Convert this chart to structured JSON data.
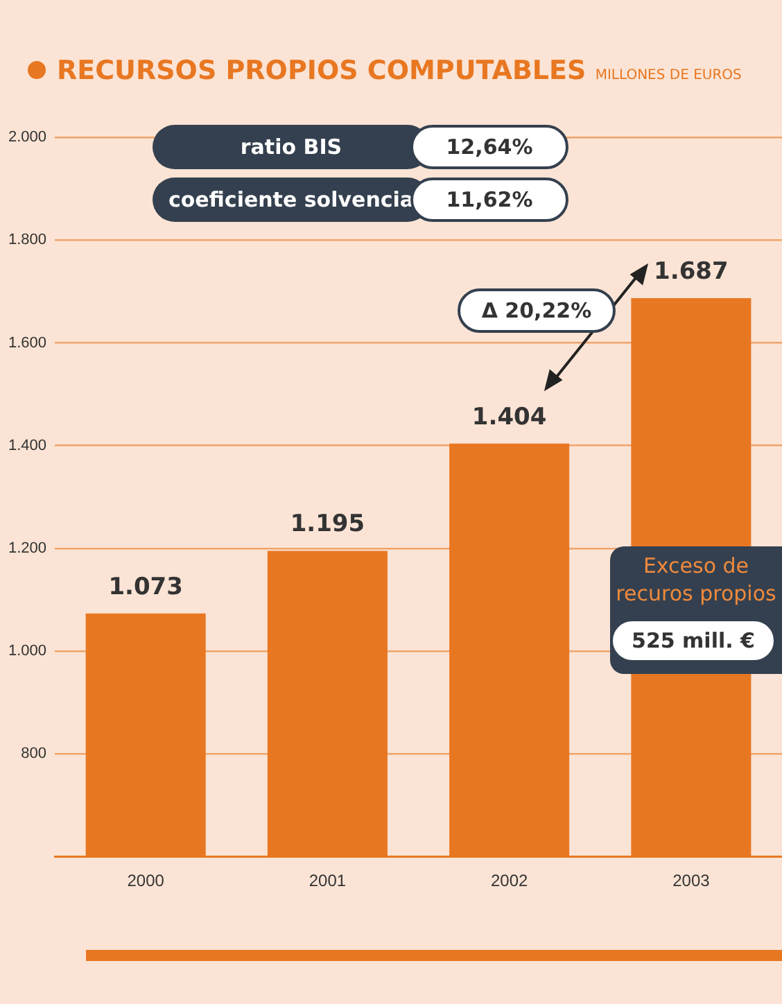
{
  "chart_data": {
    "type": "bar",
    "title": "RECURSOS PROPIOS COMPUTABLES",
    "subtitle": "MILLONES DE EUROS",
    "categories": [
      "2000",
      "2001",
      "2002",
      "2003"
    ],
    "values": [
      1073,
      1195,
      1404,
      1687
    ],
    "color": "#e87722",
    "value_labels": [
      "1.073",
      "1.195",
      "1.404",
      "1.687"
    ],
    "ylim": [
      600,
      2030
    ],
    "yticks": [
      {
        "value": 800,
        "label": "800"
      },
      {
        "value": 1000,
        "label": "1.000"
      },
      {
        "value": 1200,
        "label": "1.200"
      },
      {
        "value": 1400,
        "label": "1.400"
      },
      {
        "value": 1600,
        "label": "1.600"
      },
      {
        "value": 1800,
        "label": "1.800"
      },
      {
        "value": 2000,
        "label": "2.000"
      }
    ],
    "grid": "y",
    "legend": false,
    "annotations": [
      "ratio BIS",
      "12,64%",
      "coeficiente solvencia",
      "11,62%",
      "Δ 20,22%",
      "Exceso de recuros propios",
      "525 mill. €"
    ]
  }
}
